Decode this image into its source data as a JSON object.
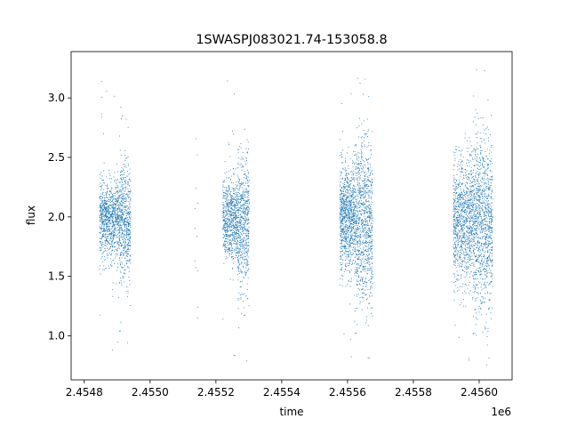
{
  "chart_data": {
    "type": "scatter",
    "title": "1SWASPJ083021.74-153058.8",
    "xlabel": "time",
    "ylabel": "flux",
    "x_offset_label": "1e6",
    "xlim": [
      2.45476,
      2.4561
    ],
    "ylim": [
      0.63,
      3.39
    ],
    "x_ticks": [
      2.4548,
      2.455,
      2.4552,
      2.4554,
      2.4556,
      2.4558,
      2.456
    ],
    "x_tick_labels": [
      "2.4548",
      "2.4550",
      "2.4552",
      "2.4554",
      "2.4556",
      "2.4558",
      "2.4560"
    ],
    "y_ticks": [
      1.0,
      1.5,
      2.0,
      2.5,
      3.0
    ],
    "y_tick_labels": [
      "1.0",
      "1.5",
      "2.0",
      "2.5",
      "3.0"
    ],
    "grid": false,
    "legend": "none",
    "series": [
      {
        "marker_color": "#1f77b4",
        "clusters": [
          {
            "x_range": [
              2.454845,
              2.454905
            ],
            "center": 1.98,
            "spread": 0.16,
            "count": 900
          },
          {
            "x_range": [
              2.454905,
              2.45494
            ],
            "center": 1.97,
            "spread": 0.24,
            "count": 600
          },
          {
            "x_range": [
              2.455135,
              2.455145
            ],
            "center": 2.05,
            "spread": 0.45,
            "count": 12
          },
          {
            "x_range": [
              2.45522,
              2.455265
            ],
            "center": 1.97,
            "spread": 0.17,
            "count": 700
          },
          {
            "x_range": [
              2.455265,
              2.4553
            ],
            "center": 1.95,
            "spread": 0.28,
            "count": 600
          },
          {
            "x_range": [
              2.455575,
              2.45562
            ],
            "center": 2.0,
            "spread": 0.22,
            "count": 900
          },
          {
            "x_range": [
              2.45562,
              2.455675
            ],
            "center": 1.95,
            "spread": 0.34,
            "count": 1000
          },
          {
            "x_range": [
              2.45592,
              2.45598
            ],
            "center": 1.97,
            "spread": 0.26,
            "count": 1000
          },
          {
            "x_range": [
              2.45598,
              2.45604
            ],
            "center": 1.95,
            "spread": 0.36,
            "count": 1100
          }
        ]
      }
    ]
  }
}
